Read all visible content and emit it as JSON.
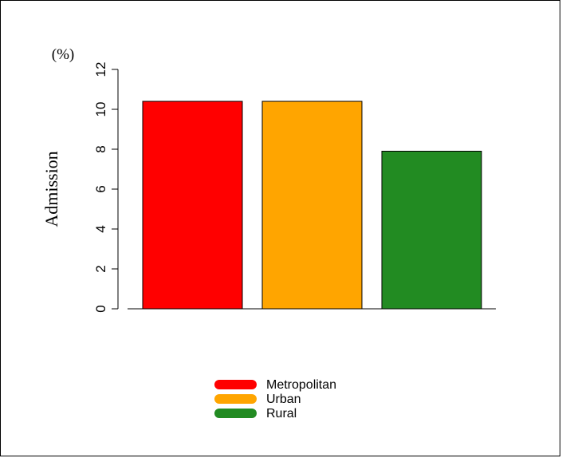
{
  "chart_data": {
    "type": "bar",
    "categories": [
      "Metropolitan",
      "Urban",
      "Rural"
    ],
    "values": [
      10.4,
      10.4,
      7.9
    ],
    "colors": [
      "#ff0000",
      "#ffa500",
      "#228b22"
    ],
    "ylabel": "Admission",
    "unit_label": "(%)",
    "ylim": [
      0,
      12
    ],
    "yticks": [
      "0",
      "2",
      "4",
      "6",
      "8",
      "10",
      "12"
    ],
    "grid": false,
    "legend": {
      "placement": "bottom-center",
      "entries": [
        "Metropolitan",
        "Urban",
        "Rural"
      ]
    }
  }
}
